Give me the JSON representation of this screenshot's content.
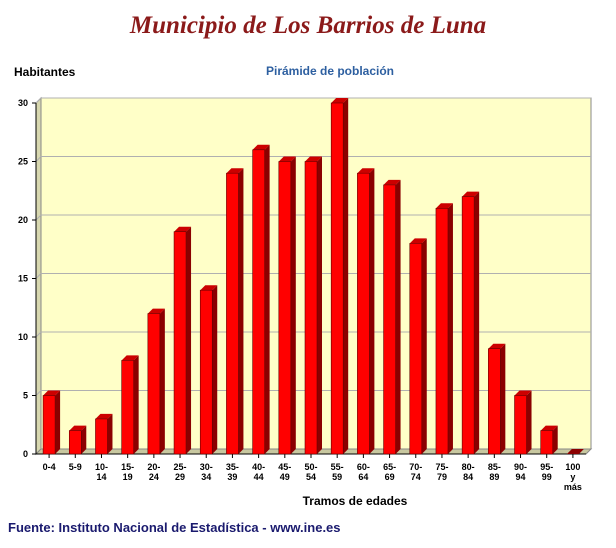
{
  "header": {
    "title": "Municipio de Los Barrios de Luna",
    "source": "Fuente: Instituto Nacional de Estadística - www.ine.es"
  },
  "chart_data": {
    "type": "bar",
    "title": "Pirámide de población",
    "xlabel": "Tramos de edades",
    "ylabel": "Habitantes",
    "categories": [
      "0-4",
      "5-9",
      "10-14",
      "15-19",
      "20-24",
      "25-29",
      "30-34",
      "35-39",
      "40-44",
      "45-49",
      "50-54",
      "55-59",
      "60-64",
      "65-69",
      "70-74",
      "75-79",
      "80-84",
      "85-89",
      "90-94",
      "95-99",
      "100 y más"
    ],
    "values": [
      5,
      2,
      3,
      8,
      12,
      19,
      14,
      24,
      26,
      25,
      25,
      30,
      24,
      23,
      18,
      21,
      22,
      9,
      5,
      2,
      0
    ],
    "ylim": [
      0,
      30
    ],
    "yticks": [
      0,
      5,
      10,
      15,
      20,
      25,
      30
    ],
    "grid": true,
    "colors": {
      "bar": "#ff0000",
      "bar_side": "#8b0000",
      "bar_top": "#cc0000",
      "plot_bg": "#ffffc8",
      "title": "#8b1a1a",
      "chart_title": "#2d5fa0"
    }
  }
}
